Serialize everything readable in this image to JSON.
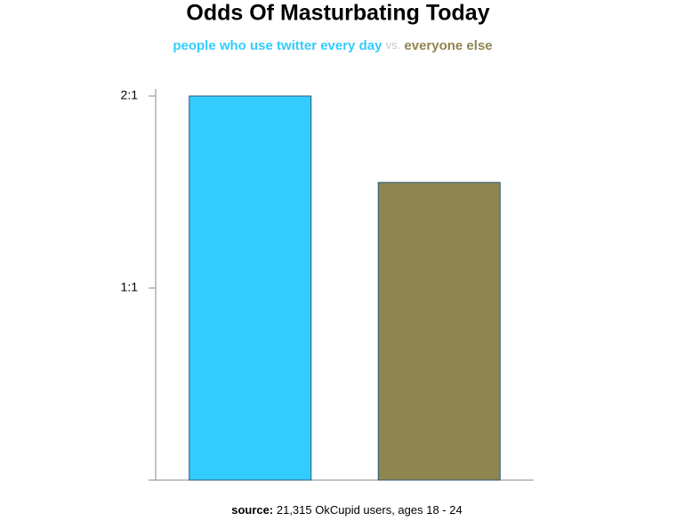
{
  "chart_data": {
    "type": "bar",
    "title": "Odds Of Masturbating Today",
    "subtitle_separator": "vs.",
    "categories": [
      null
    ],
    "series": [
      {
        "name": "people who use twitter every day",
        "color": "#33ccff",
        "values": [
          2
        ]
      },
      {
        "name": "everyone else",
        "color": "#8f8550",
        "values": [
          1.55
        ]
      }
    ],
    "ylim": [
      0,
      2
    ],
    "yticks": [
      {
        "value": 1,
        "label": "1:1"
      },
      {
        "value": 2,
        "label": "2:1"
      }
    ],
    "source_label": "source:",
    "source": "21,315 OkCupid users, ages 18 - 24"
  }
}
